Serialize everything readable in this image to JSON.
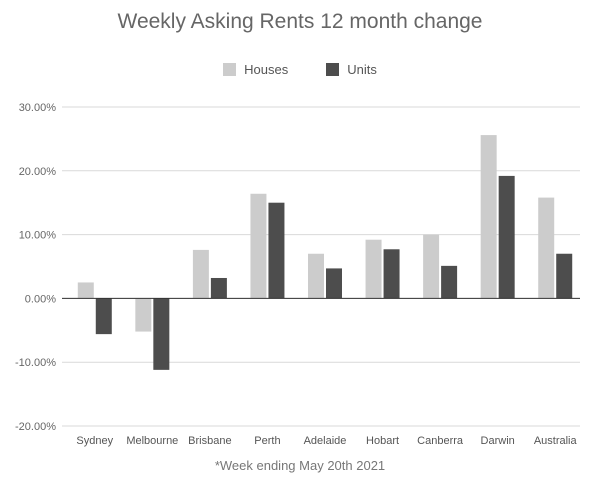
{
  "chart_data": {
    "type": "bar",
    "title": "Weekly Asking Rents 12 month change",
    "xlabel": "",
    "ylabel": "",
    "categories": [
      "Sydney",
      "Melbourne",
      "Brisbane",
      "Perth",
      "Adelaide",
      "Hobart",
      "Canberra",
      "Darwin",
      "Australia"
    ],
    "series": [
      {
        "name": "Houses",
        "color": "#cccccc",
        "values": [
          2.5,
          -5.2,
          7.6,
          16.4,
          7.0,
          9.2,
          10.0,
          25.6,
          15.8
        ]
      },
      {
        "name": "Units",
        "color": "#4d4d4d",
        "values": [
          -5.6,
          -11.2,
          3.2,
          15.0,
          4.7,
          7.7,
          5.1,
          19.2,
          7.0
        ]
      }
    ],
    "ylim": [
      -20,
      30
    ],
    "yticks": [
      30,
      20,
      10,
      0,
      -10,
      -20
    ],
    "ytick_labels": [
      "30.00%",
      "20.00%",
      "10.00%",
      "0.00%",
      "-10.00%",
      "-20.00%"
    ],
    "grid": true,
    "legend_position": "top",
    "footnote": "*Week ending May 20th 2021"
  }
}
